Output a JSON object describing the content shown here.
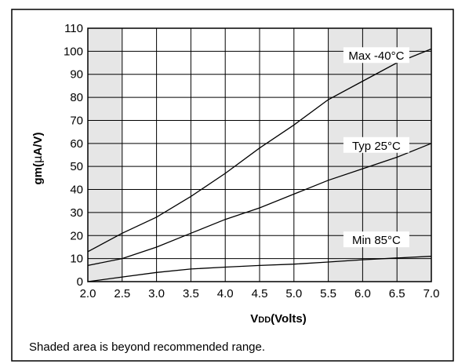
{
  "chart_data": {
    "type": "line",
    "x": [
      2.0,
      2.5,
      3.0,
      3.5,
      4.0,
      4.5,
      5.0,
      5.5,
      6.0,
      6.5,
      7.0
    ],
    "x_tick_labels": [
      "2.0",
      "2.5",
      "3.0",
      "3.5",
      "4.0",
      "4.5",
      "5.0",
      "5.5",
      "6.0",
      "6.5",
      "7.0"
    ],
    "y_ticks": [
      0,
      10,
      20,
      30,
      40,
      50,
      60,
      70,
      80,
      90,
      100,
      110
    ],
    "xlim": [
      2.0,
      7.0
    ],
    "ylim": [
      0,
      110
    ],
    "xlabel_prefix": "V",
    "xlabel_sub": "DD",
    "xlabel_suffix": "(Volts)",
    "ylabel_prefix": "gm(",
    "ylabel_mu": "μ",
    "ylabel_suffix": "A/V)",
    "grid": true,
    "shaded_ranges": [
      [
        2.0,
        2.5
      ],
      [
        5.5,
        7.0
      ]
    ],
    "shade_color": "#e6e6e6",
    "series": [
      {
        "name": "Max -40°C",
        "values": [
          13,
          21,
          28,
          37,
          47,
          58,
          68,
          79,
          87,
          95,
          101
        ]
      },
      {
        "name": "Typ 25°C",
        "values": [
          7,
          10,
          15,
          21,
          27,
          32,
          38,
          44,
          49,
          54,
          60
        ]
      },
      {
        "name": "Min 85°C",
        "values": [
          0,
          2,
          4,
          5.5,
          6.3,
          7,
          7.6,
          8.5,
          9.5,
          10.3,
          11
        ]
      }
    ],
    "footnote": "Shaded area is beyond recommended range."
  }
}
